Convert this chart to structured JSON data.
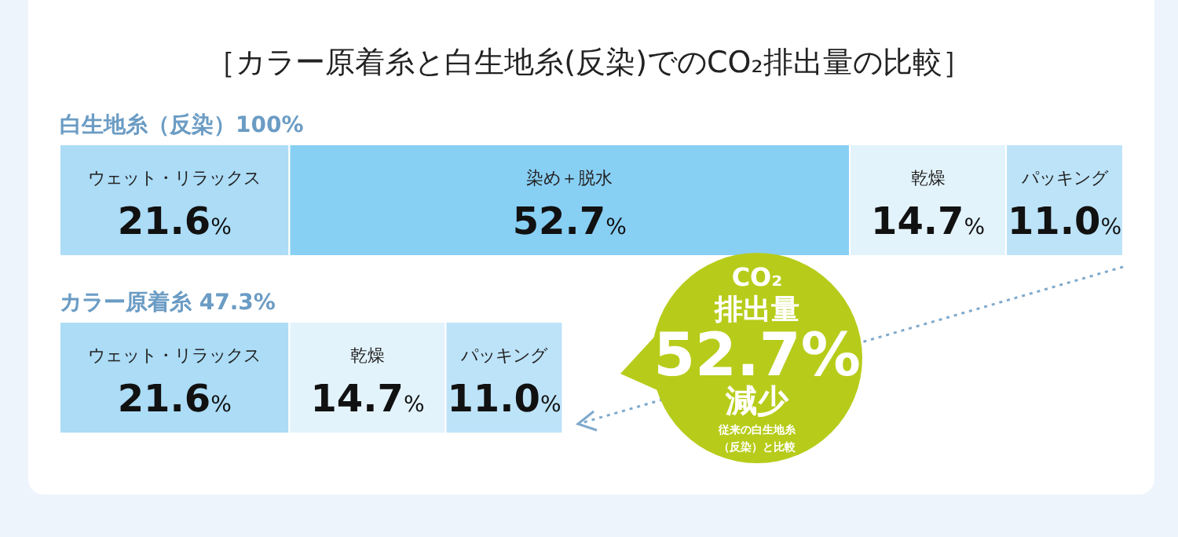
{
  "chart_data": {
    "type": "bar",
    "orientation": "horizontal",
    "stacked": true,
    "title": "［カラー原着糸と白生地糸(反染)でのCO₂排出量の比較］",
    "categories": [
      "白生地糸（反染）100%",
      "カラー原着糸 47.3%"
    ],
    "series": [
      {
        "name": "ウェット・リラックス",
        "color": "#acdcf6",
        "values": [
          21.6,
          21.6
        ],
        "value_labels": [
          "21.6%",
          "21.6%"
        ]
      },
      {
        "name": "染め＋脱水",
        "color": "#88cff4",
        "values": [
          52.7,
          null
        ],
        "value_labels": [
          "52.7%",
          null
        ]
      },
      {
        "name": "乾燥",
        "color": "#e3f3fc",
        "values": [
          14.7,
          14.7
        ],
        "value_labels": [
          "14.7%",
          "14.7%"
        ]
      },
      {
        "name": "パッキング",
        "color": "#bde3f8",
        "values": [
          11.0,
          11.0
        ],
        "value_labels": [
          "11.0%",
          "11.0%"
        ]
      }
    ],
    "annotations": [
      "CO₂",
      "排出量",
      "52.7%",
      "減少",
      "従来の白生地糸",
      "（反染）と比較"
    ]
  }
}
